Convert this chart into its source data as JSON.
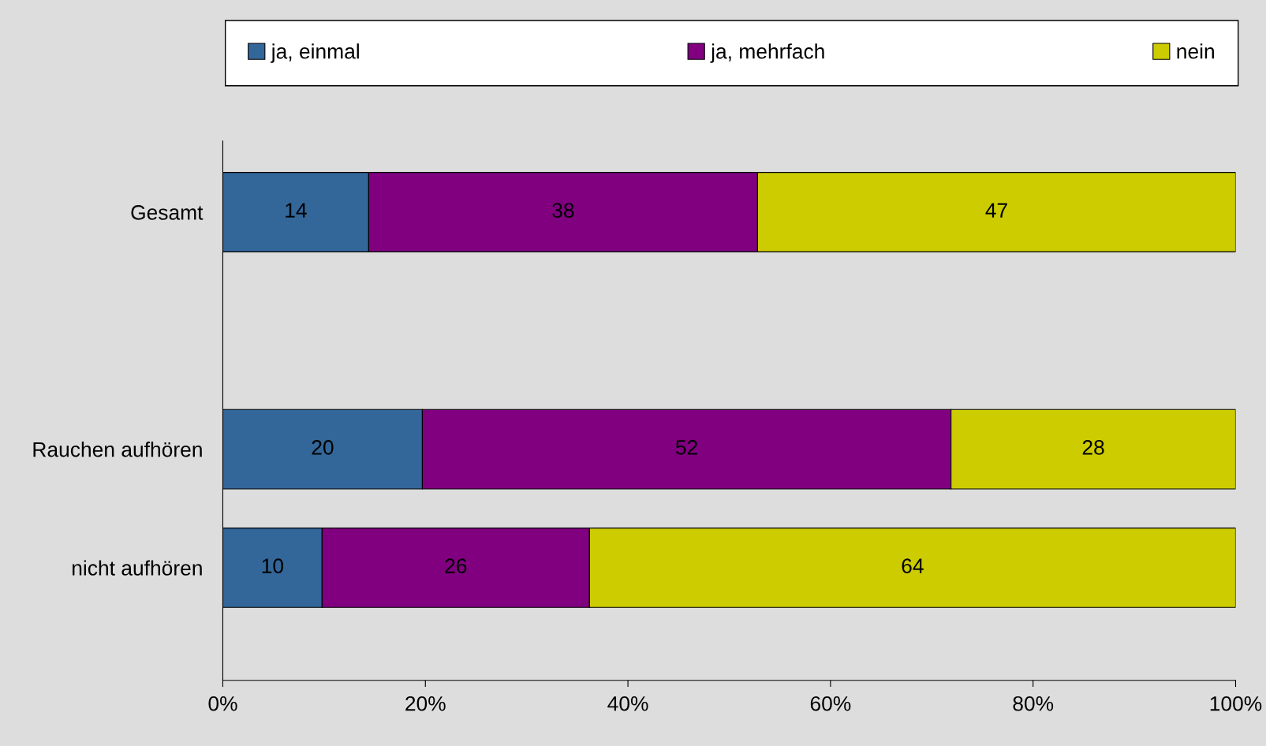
{
  "chart_data": {
    "type": "bar",
    "orientation": "horizontal",
    "stacked": true,
    "categories": [
      "Gesamt",
      null,
      "Rauchen aufhören",
      "nicht aufhören"
    ],
    "series": [
      {
        "name": "ja, einmal",
        "color": "#336699",
        "values": [
          14.4,
          null,
          19.7,
          9.8
        ],
        "value_labels": [
          "14",
          null,
          "20",
          "10"
        ]
      },
      {
        "name": "ja, mehrfach",
        "color": "#800080",
        "values": [
          38.4,
          null,
          52.2,
          26.4
        ],
        "value_labels": [
          "38",
          null,
          "52",
          "26"
        ]
      },
      {
        "name": "nein",
        "color": "#cccc00",
        "values": [
          47.2,
          null,
          28.1,
          63.8
        ],
        "value_labels": [
          "47",
          null,
          "28",
          "64"
        ]
      }
    ],
    "xlim": [
      0,
      100
    ],
    "xticks": [
      {
        "value": 0,
        "label": "0%"
      },
      {
        "value": 20,
        "label": "20%"
      },
      {
        "value": 40,
        "label": "40%"
      },
      {
        "value": 60,
        "label": "60%"
      },
      {
        "value": 80,
        "label": "80%"
      },
      {
        "value": 100,
        "label": "100%"
      }
    ],
    "grid": false,
    "legend": "top"
  }
}
